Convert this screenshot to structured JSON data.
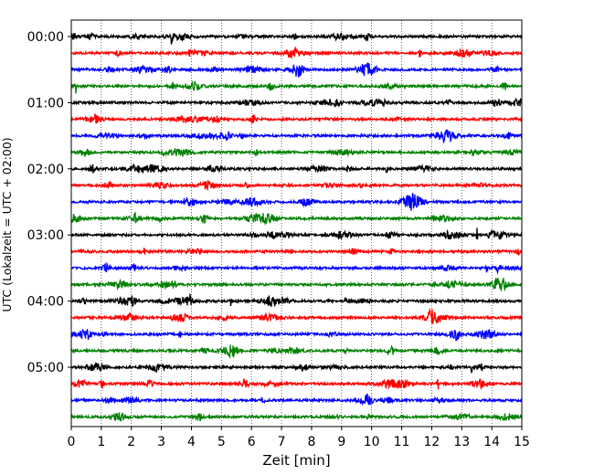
{
  "chart_data": {
    "type": "line",
    "subtype": "helicorder",
    "xlabel": "Zeit  [min]",
    "ylabel": "UTC (Lokalzeit = UTC + 02:00)",
    "xlim": [
      0,
      15
    ],
    "x_ticks": [
      "0",
      "1",
      "2",
      "3",
      "4",
      "5",
      "6",
      "7",
      "8",
      "9",
      "10",
      "11",
      "12",
      "13",
      "14",
      "15"
    ],
    "y_tick_labels": [
      "00:00",
      "01:00",
      "02:00",
      "03:00",
      "04:00",
      "05:00"
    ],
    "trace_minutes": 15,
    "trace_count": 24,
    "trace_colors": [
      "#000000",
      "#ff0000",
      "#0000ff",
      "#008000"
    ],
    "grid": "vertical dotted at each minute",
    "legend": "none"
  }
}
